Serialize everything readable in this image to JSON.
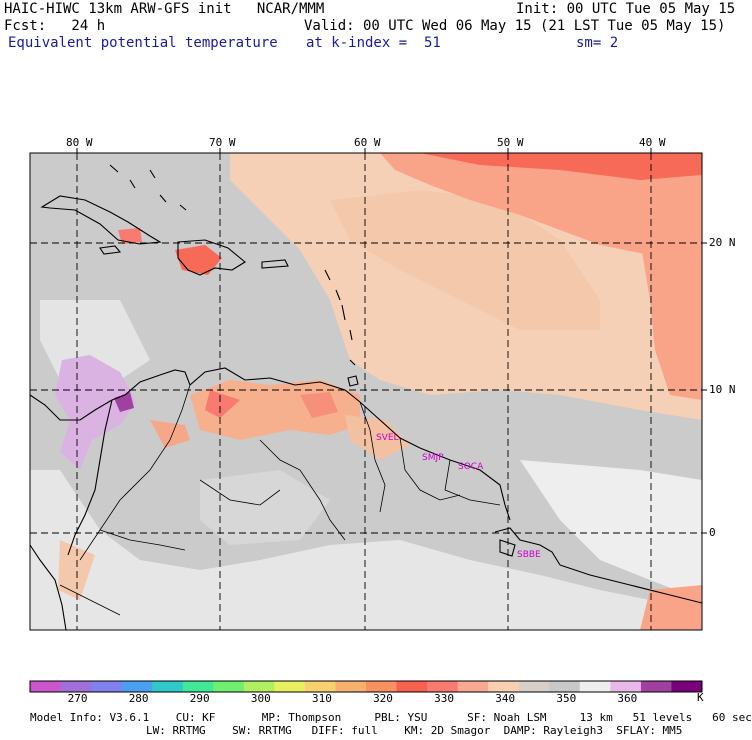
{
  "header": {
    "title": "HAIC-HIWC 13km ARW-GFS init   NCAR/MMM",
    "init": "Init: 00 UTC Tue 05 May 15",
    "fcst": "Fcst:   24 h",
    "valid": "Valid: 00 UTC Wed 06 May 15 (21 LST Tue 05 May 15)",
    "field": "Equivalent potential temperature",
    "level": "at k-index =  51",
    "smooth": "sm= 2"
  },
  "axes": {
    "lon_labels": [
      "80 W",
      "70 W",
      "60 W",
      "50 W",
      "40 W"
    ],
    "lat_labels": [
      "20 N",
      "10 N",
      "0"
    ]
  },
  "cities": [
    "SVEL",
    "SMJP",
    "SOCA",
    "SBBE"
  ],
  "colorbar": {
    "unit": "K",
    "tick_labels": [
      "270",
      "280",
      "290",
      "300",
      "310",
      "320",
      "330",
      "340",
      "350",
      "360"
    ],
    "colors": [
      "#cc55cc",
      "#a070d8",
      "#8080ee",
      "#4aa0ee",
      "#30c8c8",
      "#40e898",
      "#70ee70",
      "#b0f060",
      "#e8f060",
      "#f8d070",
      "#f8b070",
      "#f89060",
      "#f86050",
      "#f87a70",
      "#f8a890",
      "#f8cfb0",
      "#d8d0c8",
      "#c8c8c8",
      "#eeeeee",
      "#e8b8e8",
      "#a040a0",
      "#780078"
    ]
  },
  "model_info": {
    "line1": "Model Info: V3.6.1    CU: KF       MP: Thompson     PBL: YSU      SF: Noah LSM     13 km   51 levels   60 sec",
    "line2": "LW: RRTMG    SW: RRTMG   DIFF: full    KM: 2D Smagor  DAMP: Rayleigh3  SFLAY: MM5"
  }
}
